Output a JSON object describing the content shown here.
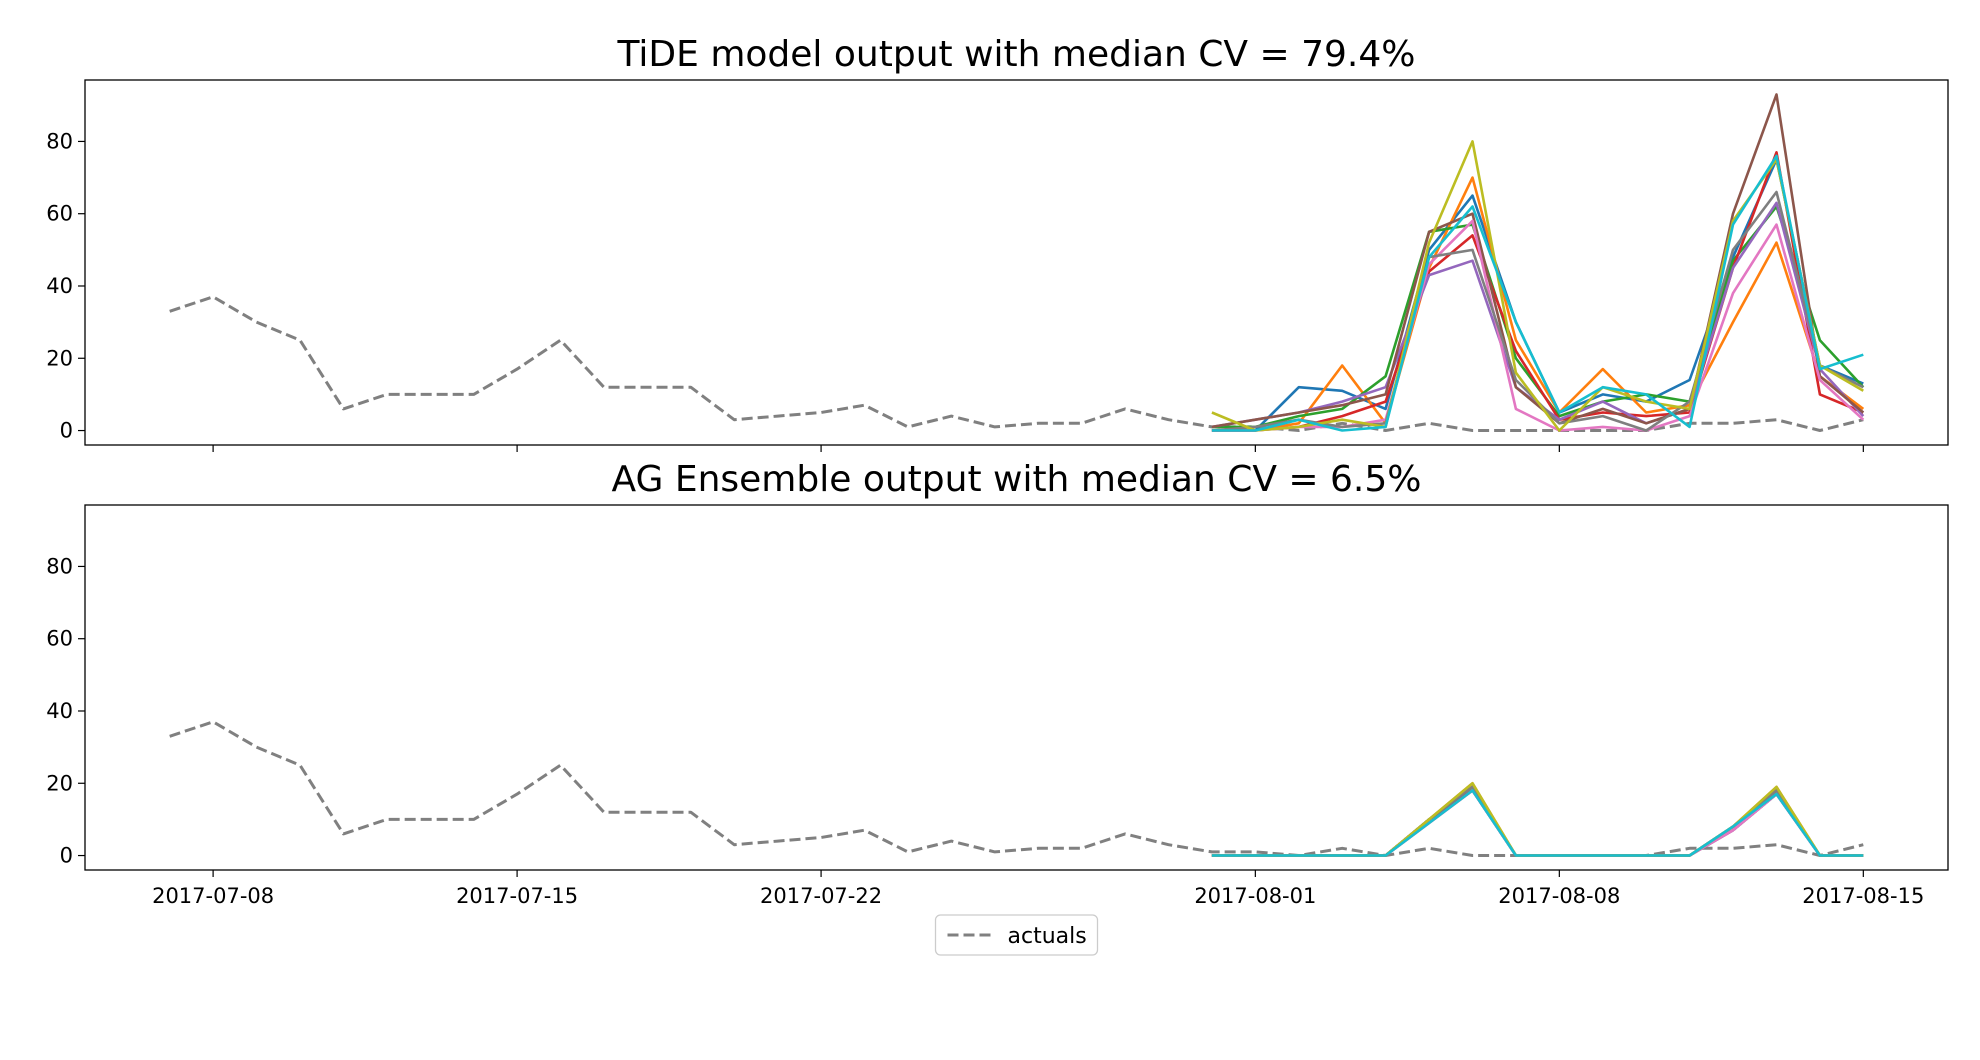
{
  "chart_data": [
    {
      "type": "line",
      "title": "TiDE model output with median CV = 79.4%",
      "xlabel": "",
      "ylabel": "",
      "x_ticks": [
        "2017-07-08",
        "2017-07-15",
        "2017-07-22",
        "2017-08-01",
        "2017-08-08",
        "2017-08-15"
      ],
      "y_ticks": [
        0,
        20,
        40,
        60,
        80
      ],
      "ylim": [
        -4,
        97
      ],
      "grid": false,
      "actuals": {
        "name": "actuals",
        "color": "#808080",
        "x": [
          "2017-07-07",
          "2017-07-08",
          "2017-07-09",
          "2017-07-10",
          "2017-07-11",
          "2017-07-12",
          "2017-07-13",
          "2017-07-14",
          "2017-07-15",
          "2017-07-16",
          "2017-07-17",
          "2017-07-18",
          "2017-07-19",
          "2017-07-20",
          "2017-07-21",
          "2017-07-22",
          "2017-07-23",
          "2017-07-24",
          "2017-07-25",
          "2017-07-26",
          "2017-07-27",
          "2017-07-28",
          "2017-07-29",
          "2017-07-30",
          "2017-07-31",
          "2017-08-01",
          "2017-08-02",
          "2017-08-03",
          "2017-08-04",
          "2017-08-05",
          "2017-08-06",
          "2017-08-07",
          "2017-08-08",
          "2017-08-09",
          "2017-08-10",
          "2017-08-11",
          "2017-08-12",
          "2017-08-13",
          "2017-08-14",
          "2017-08-15"
        ],
        "values": [
          33,
          37,
          30,
          25,
          6,
          10,
          10,
          10,
          17,
          25,
          12,
          12,
          12,
          3,
          4,
          5,
          7,
          1,
          4,
          1,
          2,
          2,
          6,
          3,
          1,
          1,
          0,
          2,
          0,
          2,
          0,
          0,
          0,
          0,
          0,
          2,
          2,
          3,
          0,
          3
        ]
      },
      "forecast_x": [
        "2017-07-31",
        "2017-08-01",
        "2017-08-02",
        "2017-08-03",
        "2017-08-04",
        "2017-08-05",
        "2017-08-06",
        "2017-08-07",
        "2017-08-08",
        "2017-08-09",
        "2017-08-10",
        "2017-08-11",
        "2017-08-12",
        "2017-08-13",
        "2017-08-14",
        "2017-08-15"
      ],
      "forecasts": [
        {
          "color": "#1f77b4",
          "values": [
            0,
            0,
            12,
            11,
            6,
            50,
            65,
            30,
            5,
            10,
            8,
            14,
            48,
            75,
            18,
            13
          ]
        },
        {
          "color": "#ff7f0e",
          "values": [
            0,
            0,
            2,
            18,
            2,
            45,
            70,
            25,
            5,
            17,
            5,
            7,
            30,
            52,
            15,
            6
          ]
        },
        {
          "color": "#2ca02c",
          "values": [
            1,
            1,
            4,
            6,
            15,
            55,
            57,
            20,
            4,
            8,
            10,
            8,
            47,
            62,
            25,
            12
          ]
        },
        {
          "color": "#d62728",
          "values": [
            0,
            0,
            1,
            4,
            8,
            44,
            54,
            22,
            3,
            5,
            4,
            5,
            45,
            77,
            10,
            5
          ]
        },
        {
          "color": "#9467bd",
          "values": [
            1,
            3,
            5,
            8,
            12,
            43,
            47,
            12,
            3,
            8,
            2,
            6,
            45,
            63,
            17,
            4
          ]
        },
        {
          "color": "#8c564b",
          "values": [
            1,
            3,
            5,
            7,
            10,
            55,
            60,
            12,
            2,
            6,
            2,
            6,
            60,
            93,
            15,
            5
          ]
        },
        {
          "color": "#e377c2",
          "values": [
            0,
            0,
            1,
            1,
            3,
            46,
            58,
            6,
            0,
            1,
            0,
            4,
            38,
            57,
            14,
            3
          ]
        },
        {
          "color": "#7f7f7f",
          "values": [
            0,
            1,
            3,
            1,
            2,
            48,
            50,
            14,
            2,
            4,
            0,
            8,
            50,
            66,
            18,
            12
          ]
        },
        {
          "color": "#bcbd22",
          "values": [
            5,
            0,
            1,
            3,
            1,
            52,
            80,
            16,
            0,
            12,
            8,
            6,
            58,
            75,
            18,
            11
          ]
        },
        {
          "color": "#17becf",
          "values": [
            0,
            0,
            3,
            0,
            1,
            48,
            62,
            30,
            5,
            12,
            10,
            1,
            57,
            76,
            17,
            21
          ]
        }
      ]
    },
    {
      "type": "line",
      "title": "AG Ensemble output with median CV = 6.5%",
      "xlabel": "",
      "ylabel": "",
      "x_ticks": [
        "2017-07-08",
        "2017-07-15",
        "2017-07-22",
        "2017-08-01",
        "2017-08-08",
        "2017-08-15"
      ],
      "y_ticks": [
        0,
        20,
        40,
        60,
        80
      ],
      "ylim": [
        -4,
        97
      ],
      "grid": false,
      "actuals": {
        "name": "actuals",
        "color": "#808080",
        "x": [
          "2017-07-07",
          "2017-07-08",
          "2017-07-09",
          "2017-07-10",
          "2017-07-11",
          "2017-07-12",
          "2017-07-13",
          "2017-07-14",
          "2017-07-15",
          "2017-07-16",
          "2017-07-17",
          "2017-07-18",
          "2017-07-19",
          "2017-07-20",
          "2017-07-21",
          "2017-07-22",
          "2017-07-23",
          "2017-07-24",
          "2017-07-25",
          "2017-07-26",
          "2017-07-27",
          "2017-07-28",
          "2017-07-29",
          "2017-07-30",
          "2017-07-31",
          "2017-08-01",
          "2017-08-02",
          "2017-08-03",
          "2017-08-04",
          "2017-08-05",
          "2017-08-06",
          "2017-08-07",
          "2017-08-08",
          "2017-08-09",
          "2017-08-10",
          "2017-08-11",
          "2017-08-12",
          "2017-08-13",
          "2017-08-14",
          "2017-08-15"
        ],
        "values": [
          33,
          37,
          30,
          25,
          6,
          10,
          10,
          10,
          17,
          25,
          12,
          12,
          12,
          3,
          4,
          5,
          7,
          1,
          4,
          1,
          2,
          2,
          6,
          3,
          1,
          1,
          0,
          2,
          0,
          2,
          0,
          0,
          0,
          0,
          0,
          2,
          2,
          3,
          0,
          3
        ]
      },
      "forecast_x": [
        "2017-07-31",
        "2017-08-01",
        "2017-08-02",
        "2017-08-03",
        "2017-08-04",
        "2017-08-05",
        "2017-08-06",
        "2017-08-07",
        "2017-08-08",
        "2017-08-09",
        "2017-08-10",
        "2017-08-11",
        "2017-08-12",
        "2017-08-13",
        "2017-08-14",
        "2017-08-15"
      ],
      "forecasts": [
        {
          "color": "#1f77b4",
          "values": [
            0,
            0,
            0,
            0,
            0,
            10,
            18,
            0,
            0,
            0,
            0,
            0,
            7,
            17,
            0,
            0
          ]
        },
        {
          "color": "#ff7f0e",
          "values": [
            0,
            0,
            0,
            0,
            0,
            10,
            20,
            0,
            0,
            0,
            0,
            0,
            8,
            19,
            0,
            0
          ]
        },
        {
          "color": "#2ca02c",
          "values": [
            0,
            0,
            0,
            0,
            0,
            10,
            19,
            0,
            0,
            0,
            0,
            0,
            8,
            18,
            0,
            0
          ]
        },
        {
          "color": "#d62728",
          "values": [
            0,
            0,
            0,
            0,
            0,
            9,
            18,
            0,
            0,
            0,
            0,
            0,
            7,
            17,
            0,
            0
          ]
        },
        {
          "color": "#9467bd",
          "values": [
            0,
            0,
            0,
            0,
            0,
            9,
            18,
            0,
            0,
            0,
            0,
            0,
            7,
            17,
            0,
            0
          ]
        },
        {
          "color": "#8c564b",
          "values": [
            0,
            0,
            0,
            0,
            0,
            10,
            19,
            0,
            0,
            0,
            0,
            0,
            8,
            18,
            0,
            0
          ]
        },
        {
          "color": "#e377c2",
          "values": [
            0,
            0,
            0,
            0,
            0,
            9,
            18,
            0,
            0,
            0,
            0,
            0,
            7,
            17,
            0,
            0
          ]
        },
        {
          "color": "#7f7f7f",
          "values": [
            0,
            0,
            0,
            0,
            0,
            10,
            19,
            0,
            0,
            0,
            0,
            0,
            8,
            18,
            0,
            0
          ]
        },
        {
          "color": "#bcbd22",
          "values": [
            0,
            0,
            0,
            0,
            0,
            10,
            20,
            0,
            0,
            0,
            0,
            0,
            8,
            19,
            0,
            0
          ]
        },
        {
          "color": "#17becf",
          "values": [
            0,
            0,
            0,
            0,
            0,
            9,
            18,
            0,
            0,
            0,
            0,
            0,
            8,
            17,
            0,
            0
          ]
        }
      ]
    }
  ],
  "legend": {
    "placement": "lower-center",
    "entries": [
      {
        "label": "actuals",
        "color": "#808080",
        "style": "dashed"
      }
    ]
  }
}
